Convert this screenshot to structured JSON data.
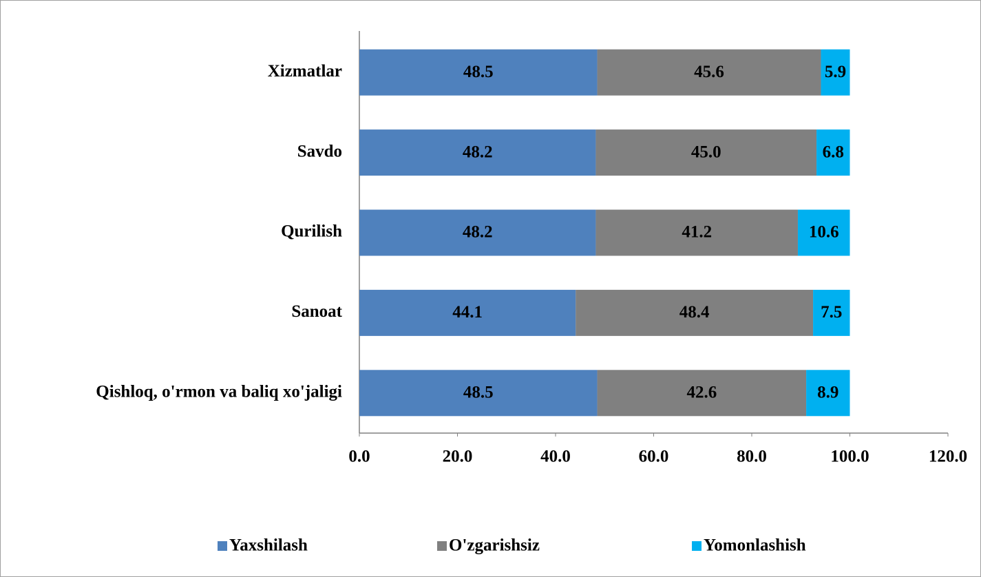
{
  "chart_data": {
    "type": "bar",
    "orientation": "horizontal",
    "stacked": true,
    "categories": [
      "Xizmatlar",
      "Savdo",
      "Qurilish",
      "Sanoat",
      "Qishloq, o'rmon va baliq xo'jaligi"
    ],
    "series": [
      {
        "name": "Yaxshilash",
        "color": "#4f81bd",
        "values": [
          48.5,
          48.2,
          48.2,
          44.1,
          48.5
        ],
        "value_labels": [
          "48.5",
          "48.2",
          "48.2",
          "44.1",
          "48.5"
        ]
      },
      {
        "name": "O'zgarishsiz",
        "color": "#808080",
        "values": [
          45.6,
          45.0,
          41.2,
          48.4,
          42.6
        ],
        "value_labels": [
          "45.6",
          "45.0",
          "41.2",
          "48.4",
          "42.6"
        ]
      },
      {
        "name": "Yomonlashish",
        "color": "#00b0f0",
        "values": [
          5.9,
          6.8,
          10.6,
          7.5,
          8.9
        ],
        "value_labels": [
          "5.9",
          "6.8",
          "10.6",
          "7.5",
          "8.9"
        ]
      }
    ],
    "xlim": [
      0,
      120
    ],
    "xticks": [
      {
        "value": 0,
        "label": "0.0"
      },
      {
        "value": 20,
        "label": "20.0"
      },
      {
        "value": 40,
        "label": "40.0"
      },
      {
        "value": 60,
        "label": "60.0"
      },
      {
        "value": 80,
        "label": "80.0"
      },
      {
        "value": 100,
        "label": "100.0"
      },
      {
        "value": 120,
        "label": "120.0"
      }
    ],
    "grid": false,
    "legend": "bottom"
  }
}
